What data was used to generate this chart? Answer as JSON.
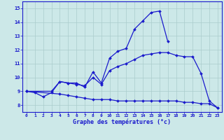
{
  "background_color": "#cce8e8",
  "line_color": "#1a1acc",
  "grid_color": "#aacccc",
  "xlabel": "Graphe des températures (°c)",
  "ylim": [
    7.5,
    15.5
  ],
  "xlim": [
    -0.5,
    23.5
  ],
  "yticks": [
    8,
    9,
    10,
    11,
    12,
    13,
    14,
    15
  ],
  "xticks": [
    0,
    1,
    2,
    3,
    4,
    5,
    6,
    7,
    8,
    9,
    10,
    11,
    12,
    13,
    14,
    15,
    16,
    17,
    18,
    19,
    20,
    21,
    22,
    23
  ],
  "curve1_x": [
    0,
    1,
    2,
    3,
    4,
    5,
    6,
    7,
    8,
    9,
    10,
    11,
    12,
    13,
    14,
    15,
    16,
    17
  ],
  "curve1_y": [
    9.0,
    8.9,
    8.6,
    8.9,
    9.7,
    9.6,
    9.6,
    9.3,
    10.4,
    9.6,
    11.4,
    11.9,
    12.1,
    13.5,
    14.1,
    14.7,
    14.8,
    12.6
  ],
  "curve2_x": [
    0,
    3,
    4,
    5,
    6,
    7,
    8,
    9,
    10,
    11,
    12,
    13,
    14,
    15,
    16,
    17,
    18,
    19,
    20,
    21,
    22,
    23
  ],
  "curve2_y": [
    9.0,
    9.0,
    9.7,
    9.6,
    9.5,
    9.4,
    10.0,
    9.5,
    10.5,
    10.8,
    11.0,
    11.3,
    11.6,
    11.7,
    11.8,
    11.8,
    11.6,
    11.5,
    11.5,
    10.3,
    8.3,
    7.8
  ],
  "curve3_x": [
    0,
    4,
    5,
    6,
    7,
    8,
    9,
    10,
    11,
    12,
    13,
    14,
    15,
    16,
    17,
    18,
    19,
    20,
    21,
    22,
    23
  ],
  "curve3_y": [
    9.0,
    8.8,
    8.7,
    8.6,
    8.5,
    8.4,
    8.4,
    8.4,
    8.3,
    8.3,
    8.3,
    8.3,
    8.3,
    8.3,
    8.3,
    8.3,
    8.2,
    8.2,
    8.1,
    8.1,
    7.8
  ]
}
